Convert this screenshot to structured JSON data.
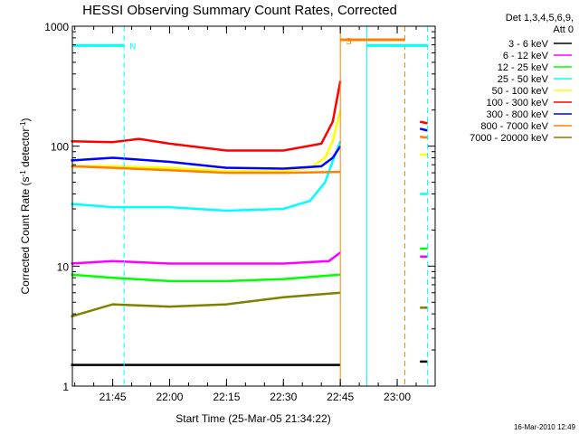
{
  "chart_data": {
    "type": "line",
    "title": "HESSI Observing Summary Count Rates, Corrected",
    "xlabel": "Start Time (25-Mar-05 21:34:22)",
    "ylabel": "Corrected Count Rate (s",
    "ylabel_sup1": "-1",
    "ylabel_mid": " detector",
    "ylabel_sup2": "-1",
    "ylabel_end": ")",
    "yscale": "log",
    "ylim": [
      1,
      1000
    ],
    "xlim": [
      "21:34:22",
      "23:10:00"
    ],
    "x_ticks": [
      "21:45",
      "22:00",
      "22:15",
      "22:30",
      "22:45",
      "23:00"
    ],
    "y_ticks": [
      "1",
      "10",
      "100",
      "1000"
    ],
    "grid": false,
    "legend_header": [
      "Det 1,3,4,5,6,9,",
      "Att 0"
    ],
    "legend_position": "right",
    "timestamp": "16-Mar-2010 12:49",
    "series": [
      {
        "name": "3 - 6 keV",
        "color": "#000000",
        "segments": [
          {
            "x": [
              "21:34",
              "21:45",
              "22:00",
              "22:15",
              "22:30",
              "22:45"
            ],
            "y": [
              1.5,
              1.5,
              1.5,
              1.5,
              1.5,
              1.5
            ]
          },
          {
            "x": [
              "23:06",
              "23:08"
            ],
            "y": [
              1.6,
              1.6
            ]
          }
        ]
      },
      {
        "name": "6 - 12 keV",
        "color": "#ff00ff",
        "segments": [
          {
            "x": [
              "21:34",
              "21:45",
              "22:00",
              "22:15",
              "22:30",
              "22:42",
              "22:45"
            ],
            "y": [
              10.5,
              11,
              10.5,
              10.5,
              10.5,
              11,
              13
            ]
          },
          {
            "x": [
              "23:06",
              "23:08"
            ],
            "y": [
              12,
              12
            ]
          }
        ]
      },
      {
        "name": "12 - 25 keV",
        "color": "#00ff00",
        "segments": [
          {
            "x": [
              "21:34",
              "21:45",
              "22:00",
              "22:15",
              "22:30",
              "22:45"
            ],
            "y": [
              8.5,
              8,
              7.5,
              7.5,
              7.8,
              8.5
            ]
          },
          {
            "x": [
              "23:06",
              "23:08"
            ],
            "y": [
              14,
              14
            ]
          }
        ]
      },
      {
        "name": "25 - 50 keV",
        "color": "#00ffff",
        "segments": [
          {
            "x": [
              "21:34",
              "21:45",
              "22:00",
              "22:15",
              "22:30",
              "22:37",
              "22:41",
              "22:43",
              "22:45"
            ],
            "y": [
              33,
              31,
              31,
              29,
              30,
              35,
              50,
              75,
              110
            ]
          },
          {
            "x": [
              "23:06",
              "23:08"
            ],
            "y": [
              40,
              40
            ]
          }
        ]
      },
      {
        "name": "50 - 100 keV",
        "color": "#ffff00",
        "segments": [
          {
            "x": [
              "21:34",
              "21:45",
              "22:00",
              "22:15",
              "22:30",
              "22:37",
              "22:41",
              "22:43",
              "22:45"
            ],
            "y": [
              68,
              68,
              66,
              62,
              62,
              66,
              80,
              110,
              200
            ]
          },
          {
            "x": [
              "23:06",
              "23:08"
            ],
            "y": [
              85,
              85
            ]
          }
        ]
      },
      {
        "name": "100 - 300 keV",
        "color": "#ff0000",
        "segments": [
          {
            "x": [
              "21:34",
              "21:45",
              "21:52",
              "22:00",
              "22:15",
              "22:30",
              "22:40",
              "22:43",
              "22:45"
            ],
            "y": [
              110,
              108,
              115,
              105,
              92,
              92,
              105,
              160,
              350
            ]
          },
          {
            "x": [
              "23:06",
              "23:08"
            ],
            "y": [
              160,
              155
            ]
          }
        ]
      },
      {
        "name": "300 - 800 keV",
        "color": "#0000ff",
        "segments": [
          {
            "x": [
              "21:34",
              "21:45",
              "22:00",
              "22:15",
              "22:30",
              "22:40",
              "22:43",
              "22:45"
            ],
            "y": [
              76,
              80,
              74,
              66,
              65,
              68,
              80,
              100
            ]
          },
          {
            "x": [
              "23:06",
              "23:08"
            ],
            "y": [
              140,
              135
            ]
          }
        ]
      },
      {
        "name": "800 - 7000 keV",
        "color": "#ff8000",
        "segments": [
          {
            "x": [
              "21:34",
              "21:45",
              "22:00",
              "22:15",
              "22:30",
              "22:45"
            ],
            "y": [
              68,
              66,
              63,
              60,
              60,
              61
            ]
          },
          {
            "x": [
              "23:06",
              "23:08"
            ],
            "y": [
              120,
              118
            ]
          }
        ]
      },
      {
        "name": "7000 - 20000 keV",
        "color": "#808000",
        "segments": [
          {
            "x": [
              "21:34",
              "21:45",
              "22:00",
              "22:15",
              "22:30",
              "22:45"
            ],
            "y": [
              3.8,
              4.8,
              4.6,
              4.8,
              5.5,
              6
            ]
          },
          {
            "x": [
              "23:06",
              "23:08"
            ],
            "y": [
              4.5,
              4.5
            ]
          }
        ]
      }
    ],
    "annotations": [
      {
        "label": "N",
        "x": "21:48",
        "y": 690,
        "color": "#00ffff"
      },
      {
        "label": "S",
        "x": "22:45",
        "y": 760,
        "color": "#ff8000"
      }
    ],
    "flag_bars": [
      {
        "color": "#00ffff",
        "x": [
          "21:34:22",
          "21:48"
        ],
        "y": 690
      },
      {
        "color": "#ff8000",
        "x": [
          "22:45",
          "23:02"
        ],
        "y": 770
      },
      {
        "color": "#00ffff",
        "x": [
          "22:52",
          "23:08"
        ],
        "y": 690
      }
    ],
    "vertical_lines": [
      {
        "x": "21:48",
        "color": "#00ffff",
        "style": "dashed"
      },
      {
        "x": "22:45",
        "color": "#ff8000",
        "style": "solid"
      },
      {
        "x": "22:52",
        "color": "#00ffff",
        "style": "solid"
      },
      {
        "x": "23:02",
        "color": "#ff8000",
        "style": "dashed"
      },
      {
        "x": "23:08",
        "color": "#00ffff",
        "style": "dashed"
      }
    ]
  }
}
